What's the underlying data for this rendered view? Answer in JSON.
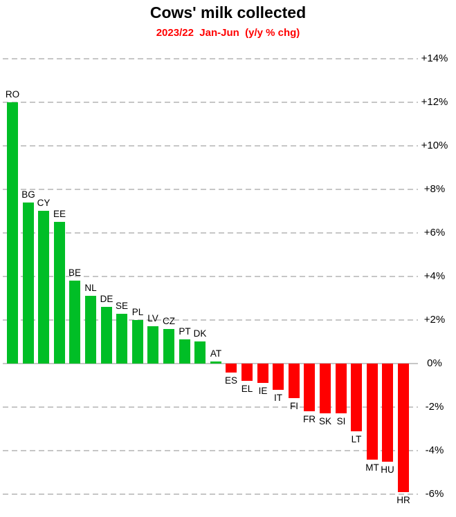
{
  "chart_data": {
    "type": "bar",
    "title": "Cows' milk collected",
    "subtitle": "2023/22  Jan-Jun  (y/y % chg)",
    "categories": [
      "RO",
      "BG",
      "CY",
      "EE",
      "BE",
      "NL",
      "DE",
      "SE",
      "PL",
      "LV",
      "CZ",
      "PT",
      "DK",
      "AT",
      "ES",
      "EL",
      "IE",
      "IT",
      "FI",
      "FR",
      "SK",
      "SI",
      "LT",
      "MT",
      "HU",
      "HR"
    ],
    "values": [
      12.0,
      7.4,
      7.0,
      6.5,
      3.8,
      3.1,
      2.6,
      2.3,
      2.0,
      1.7,
      1.6,
      1.1,
      1.0,
      0.1,
      -0.4,
      -0.8,
      -0.9,
      -1.2,
      -1.6,
      -2.2,
      -2.3,
      -2.3,
      -3.1,
      -4.4,
      -4.5,
      -5.9
    ],
    "xlabel": "",
    "ylabel": "",
    "ylim": [
      -6,
      14
    ],
    "ytick_step": 2,
    "ytick_labels": [
      "+14%",
      "+12%",
      "+10%",
      "+8%",
      "+6%",
      "+4%",
      "+2%",
      "0%",
      "-2%",
      "-4%",
      "-6%"
    ],
    "grid": "horizontal-dashed, solid zero line",
    "legend": "none",
    "bar_label_position": "above positive bars, below negative bars",
    "colors": {
      "positive_bar": "#00be26",
      "negative_bar": "#ff0000",
      "subtitle_text": "#ff0000",
      "gridline": "#c6c6c6",
      "label_text": "#000000"
    }
  }
}
